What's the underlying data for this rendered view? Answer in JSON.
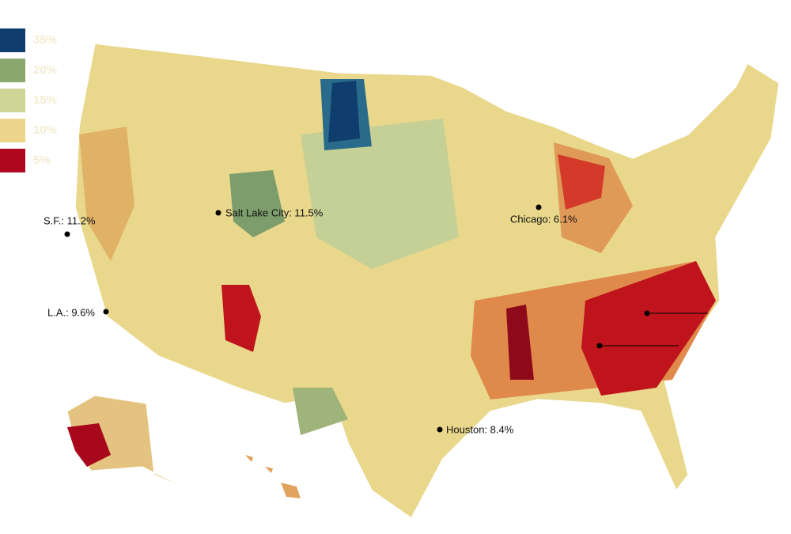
{
  "legend": [
    {
      "label": "35%",
      "color": "#0e3d6e"
    },
    {
      "label": "20%",
      "color": "#8aa86e"
    },
    {
      "label": "15%",
      "color": "#cdd696"
    },
    {
      "label": "10%",
      "color": "#ecd58a"
    },
    {
      "label": "5%",
      "color": "#b0071f"
    }
  ],
  "cities": [
    {
      "label": "S.F.: 11.2%"
    },
    {
      "label": "Salt Lake City: 11.5%"
    },
    {
      "label": "Chicago: 6.1%"
    },
    {
      "label": "L.A.: 9.6%"
    },
    {
      "label": "Houston: 8.4%"
    }
  ]
}
